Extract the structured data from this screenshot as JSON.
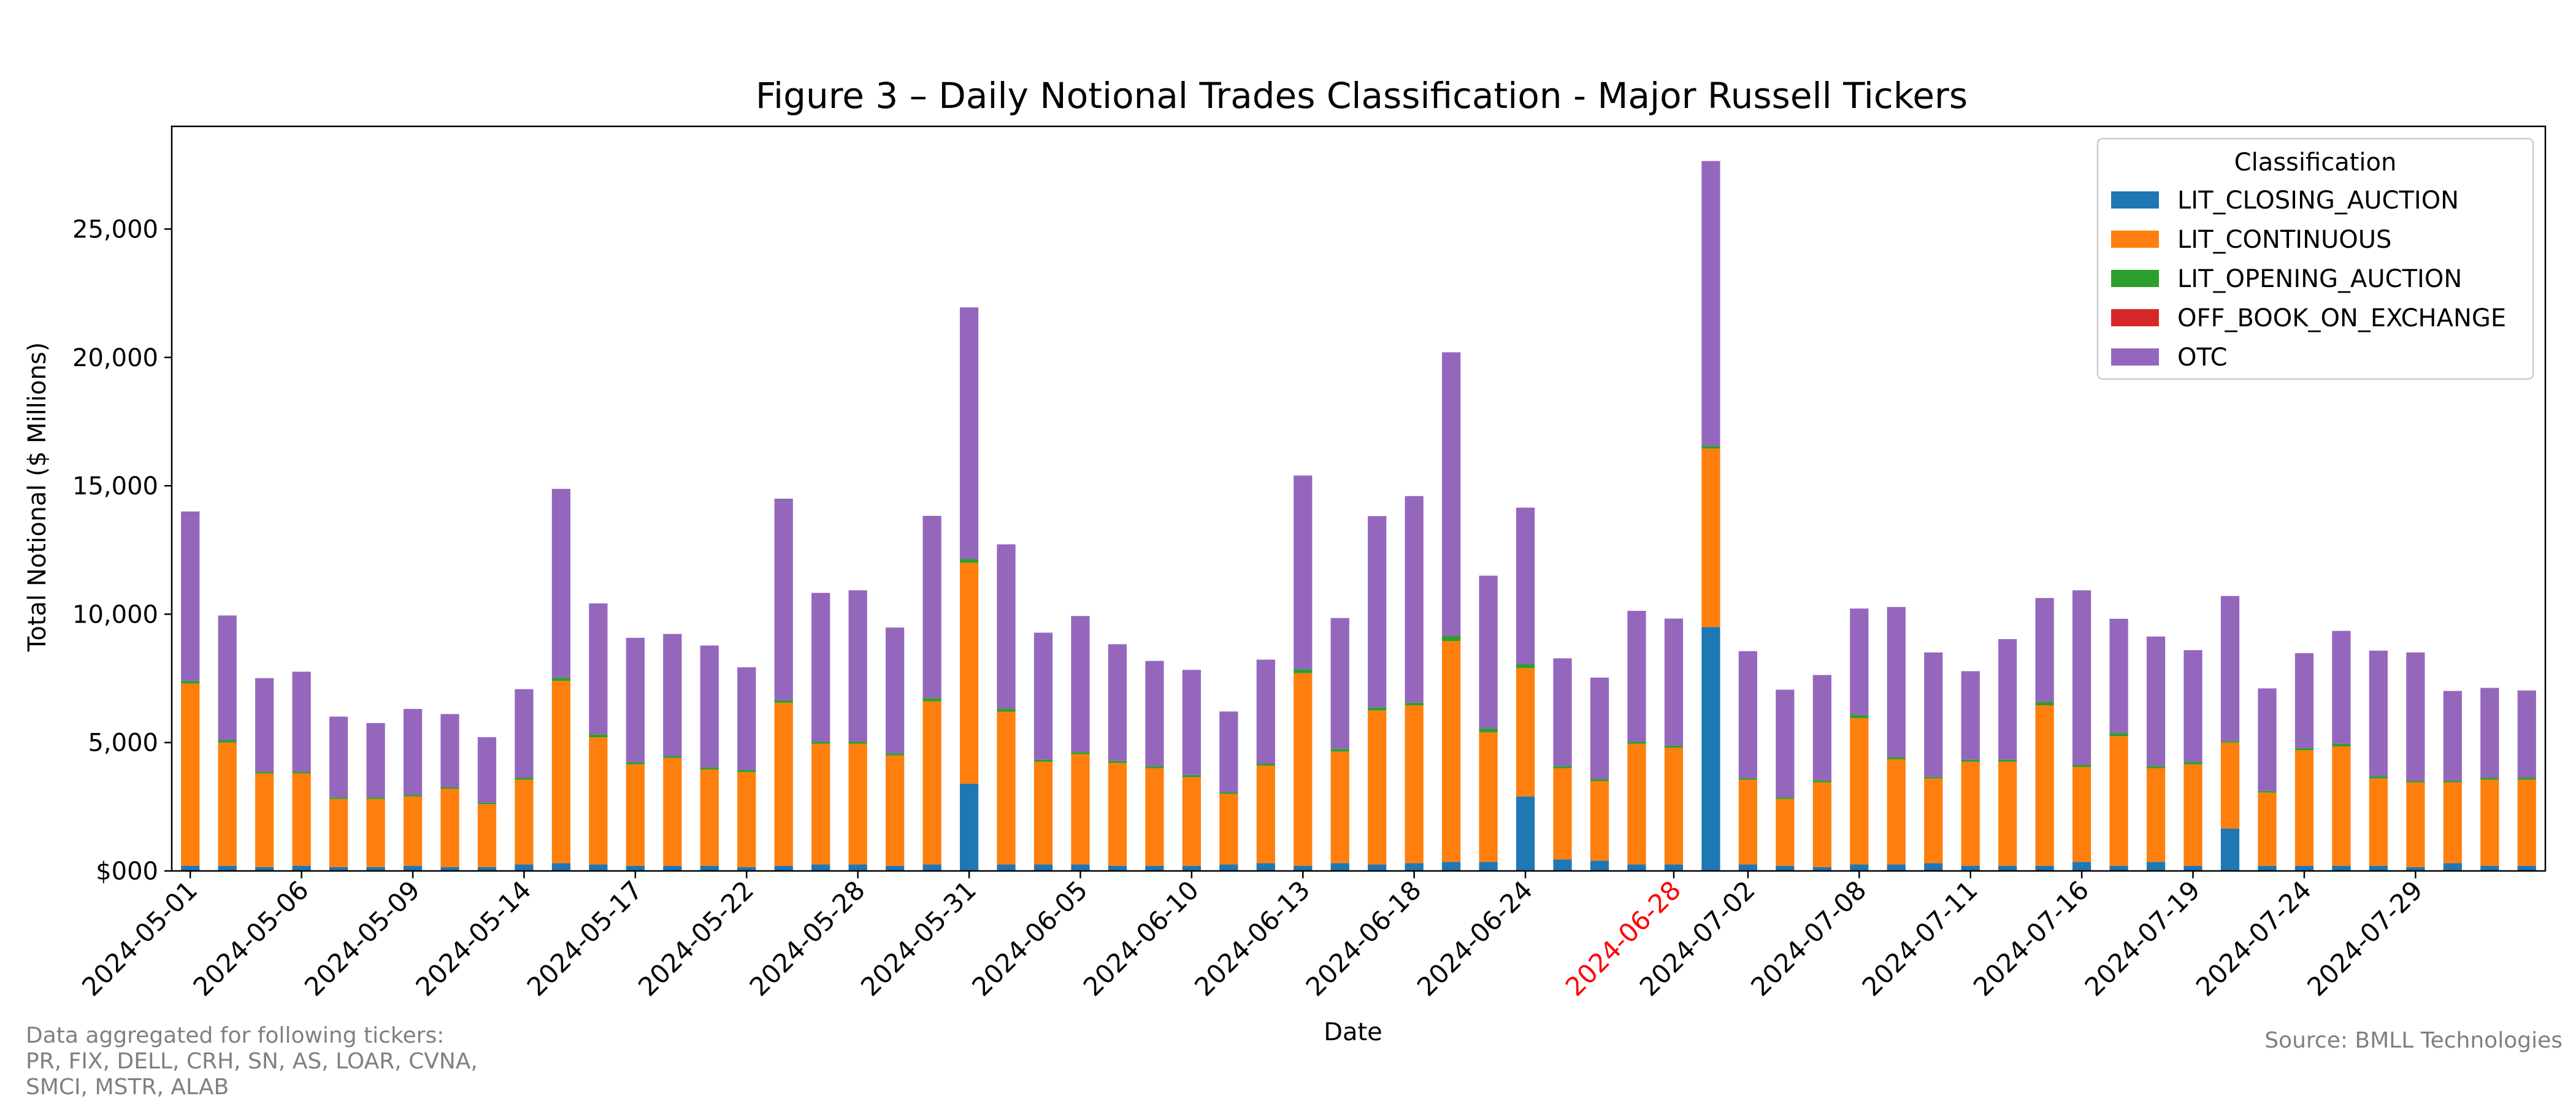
{
  "chart_data": {
    "type": "bar",
    "stacked": true,
    "title": "Figure 3 – Daily Notional Trades Classification - Major Russell Tickers",
    "xlabel": "Date",
    "ylabel": "Total Notional ($ Millions)",
    "ylim": [
      0,
      29000
    ],
    "yticks": [
      0,
      5000,
      10000,
      15000,
      20000,
      25000
    ],
    "ytick_labels": [
      "$000",
      "5,000",
      "10,000",
      "15,000",
      "20,000",
      "25,000"
    ],
    "legend": {
      "title": "Classification",
      "placement": "top-right"
    },
    "highlight_color": "#ff0000",
    "x_tick_labels": [
      {
        "index": 0,
        "label": "2024-05-01",
        "highlight": false
      },
      {
        "index": 3,
        "label": "2024-05-06",
        "highlight": false
      },
      {
        "index": 6,
        "label": "2024-05-09",
        "highlight": false
      },
      {
        "index": 9,
        "label": "2024-05-14",
        "highlight": false
      },
      {
        "index": 12,
        "label": "2024-05-17",
        "highlight": false
      },
      {
        "index": 15,
        "label": "2024-05-22",
        "highlight": false
      },
      {
        "index": 18,
        "label": "2024-05-28",
        "highlight": false
      },
      {
        "index": 21,
        "label": "2024-05-31",
        "highlight": false
      },
      {
        "index": 24,
        "label": "2024-06-05",
        "highlight": false
      },
      {
        "index": 27,
        "label": "2024-06-10",
        "highlight": false
      },
      {
        "index": 30,
        "label": "2024-06-13",
        "highlight": false
      },
      {
        "index": 33,
        "label": "2024-06-18",
        "highlight": false
      },
      {
        "index": 36,
        "label": "2024-06-24",
        "highlight": false
      },
      {
        "index": 40,
        "label": "2024-06-28",
        "highlight": true
      },
      {
        "index": 42,
        "label": "2024-07-02",
        "highlight": false
      },
      {
        "index": 45,
        "label": "2024-07-08",
        "highlight": false
      },
      {
        "index": 48,
        "label": "2024-07-11",
        "highlight": false
      },
      {
        "index": 51,
        "label": "2024-07-16",
        "highlight": false
      },
      {
        "index": 54,
        "label": "2024-07-19",
        "highlight": false
      },
      {
        "index": 57,
        "label": "2024-07-24",
        "highlight": false
      },
      {
        "index": 60,
        "label": "2024-07-29",
        "highlight": false
      }
    ],
    "series": [
      {
        "name": "LIT_CLOSING_AUCTION",
        "color": "#1f77b4",
        "values": [
          200,
          200,
          150,
          200,
          150,
          150,
          200,
          150,
          150,
          250,
          300,
          250,
          200,
          200,
          200,
          150,
          200,
          250,
          250,
          200,
          250,
          3400,
          250,
          250,
          250,
          200,
          200,
          200,
          250,
          300,
          200,
          300,
          250,
          300,
          350,
          350,
          2900,
          450,
          400,
          250,
          250,
          9500,
          250,
          200,
          150,
          250,
          250,
          300,
          200,
          200,
          200,
          350,
          200,
          350,
          200,
          1650,
          200,
          200,
          200,
          200,
          150,
          300,
          200,
          200
        ]
      },
      {
        "name": "LIT_CONTINUOUS",
        "color": "#ff7f0e",
        "values": [
          7100,
          4800,
          3650,
          3600,
          2650,
          2650,
          2700,
          3050,
          2450,
          3300,
          7100,
          4950,
          3950,
          4200,
          3750,
          3700,
          6350,
          4700,
          4700,
          4300,
          6350,
          8600,
          5950,
          4000,
          4300,
          4000,
          3800,
          3450,
          2750,
          3800,
          7500,
          4350,
          6000,
          6150,
          8600,
          5050,
          5000,
          3550,
          3100,
          4700,
          4550,
          6950,
          3300,
          2600,
          3300,
          5700,
          4100,
          3300,
          4050,
          4050,
          6250,
          3700,
          5050,
          3650,
          3950,
          3350,
          2850,
          4500,
          4650,
          3400,
          3300,
          3150,
          3350,
          3350
        ]
      },
      {
        "name": "LIT_OPENING_AUCTION",
        "color": "#2ca02c",
        "values": [
          100,
          100,
          60,
          60,
          60,
          60,
          60,
          60,
          60,
          80,
          130,
          120,
          80,
          80,
          80,
          80,
          100,
          80,
          80,
          80,
          130,
          150,
          120,
          80,
          80,
          80,
          80,
          80,
          60,
          80,
          150,
          100,
          120,
          100,
          200,
          150,
          150,
          80,
          80,
          80,
          80,
          100,
          60,
          60,
          80,
          120,
          80,
          60,
          80,
          80,
          130,
          80,
          120,
          80,
          100,
          60,
          60,
          80,
          100,
          80,
          60,
          60,
          80,
          80
        ]
      },
      {
        "name": "OFF_BOOK_ON_EXCHANGE",
        "color": "#d62728",
        "values": [
          0,
          0,
          0,
          0,
          0,
          0,
          0,
          0,
          0,
          0,
          0,
          0,
          0,
          0,
          0,
          0,
          0,
          0,
          0,
          0,
          0,
          0,
          0,
          0,
          0,
          0,
          0,
          0,
          0,
          0,
          0,
          0,
          0,
          0,
          0,
          0,
          0,
          0,
          0,
          0,
          0,
          0,
          0,
          0,
          0,
          0,
          0,
          0,
          0,
          0,
          0,
          0,
          0,
          0,
          0,
          0,
          0,
          0,
          0,
          0,
          0,
          0,
          0,
          0
        ]
      },
      {
        "name": "OTC",
        "color": "#9467bd",
        "values": [
          6600,
          4850,
          3650,
          3900,
          3150,
          2900,
          3350,
          2850,
          2550,
          3450,
          7350,
          5100,
          4850,
          4750,
          4750,
          4000,
          7850,
          5800,
          5900,
          4900,
          7100,
          9800,
          6400,
          4950,
          5300,
          4550,
          4100,
          4100,
          3150,
          4050,
          7550,
          5100,
          7450,
          8050,
          11050,
          5950,
          6100,
          4200,
          3950,
          5100,
          4950,
          11100,
          4950,
          4200,
          4100,
          4150,
          5850,
          4850,
          3450,
          4700,
          4050,
          6800,
          4450,
          5050,
          4350,
          5650,
          4000,
          3700,
          4400,
          4900,
          5000,
          3500,
          3500,
          3400
        ]
      }
    ]
  },
  "footnote": {
    "line1": "Data aggregated for following tickers:",
    "line2": "PR, FIX, DELL, CRH, SN, AS, LOAR, CVNA,",
    "line3": "SMCI, MSTR, ALAB"
  },
  "source": "Source: BMLL Technologies"
}
